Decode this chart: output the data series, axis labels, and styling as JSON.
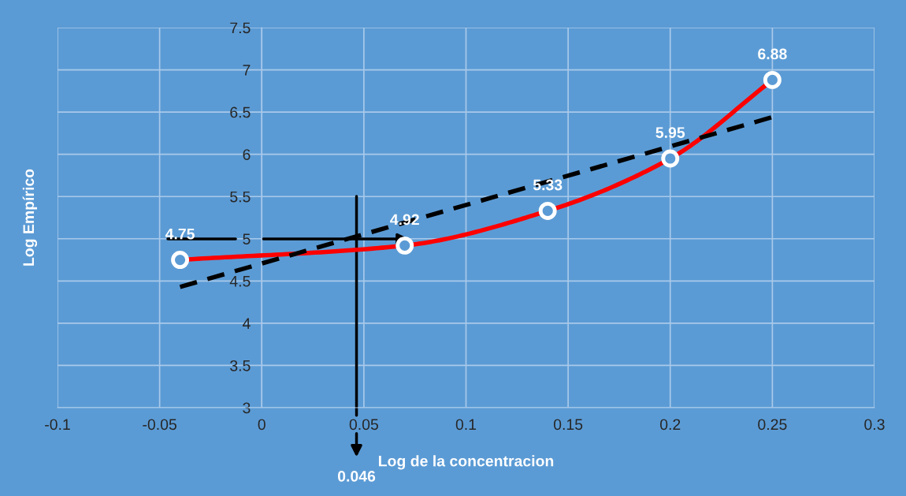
{
  "chart_data": {
    "type": "line",
    "xlabel": "Log de la concentracion",
    "ylabel": "Log Empírico",
    "x": [
      -0.04,
      0.07,
      0.14,
      0.2,
      0.25
    ],
    "series": [
      {
        "color": "#ff0000",
        "values": [
          4.75,
          4.92,
          5.33,
          5.95,
          6.88
        ],
        "value_labels": [
          "4.75",
          "4.92",
          "5.33",
          "5.95",
          "6.88"
        ],
        "marker": "circle"
      },
      {
        "type": "line",
        "x": [
          -0.04,
          0.25
        ],
        "values": [
          4.43,
          6.44
        ],
        "color": "#000000",
        "line_style": "dashed",
        "marker": "none"
      }
    ],
    "xlim": [
      -0.1,
      0.3
    ],
    "xticks": [
      -0.1,
      -0.05,
      0,
      0.05,
      0.1,
      0.15,
      0.2,
      0.25,
      0.3
    ],
    "ylim": [
      3,
      7.5
    ],
    "yticks": [
      3,
      3.5,
      4,
      4.5,
      5,
      5.5,
      6,
      6.5,
      7,
      7.5
    ],
    "annotations": [
      "0.046"
    ],
    "grid": true
  }
}
